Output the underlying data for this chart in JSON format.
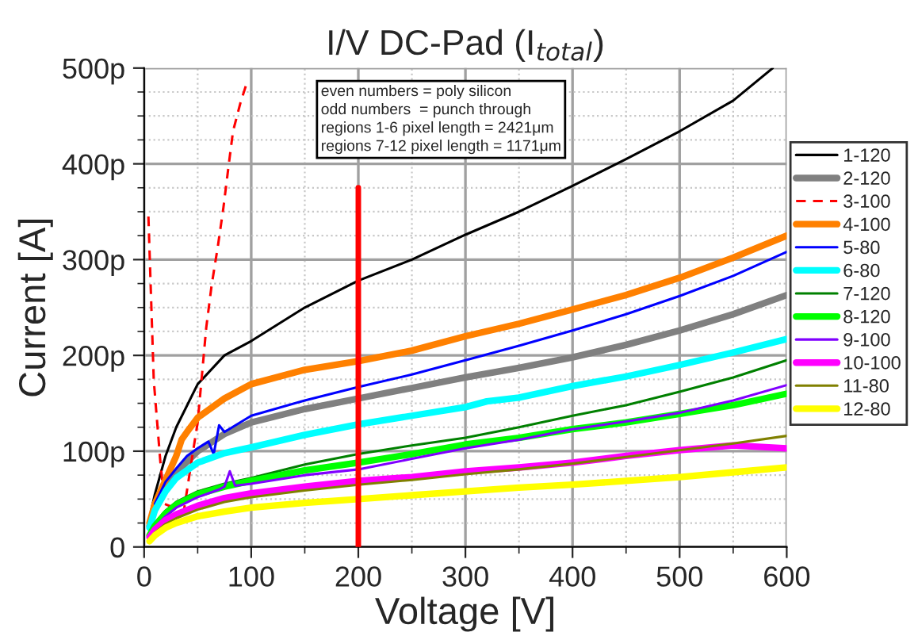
{
  "chart_data": {
    "type": "line",
    "title": "I/V DC-Pad (I$_{total}$)",
    "xlabel": "Voltage [V]",
    "ylabel": "Current [A]",
    "xlim": [
      0,
      600
    ],
    "xticks": [
      0,
      100,
      200,
      300,
      400,
      500,
      600
    ],
    "ylim": [
      0,
      500
    ],
    "yticks": [
      0,
      {
        "value": 100,
        "label": "100p"
      },
      {
        "value": 200,
        "label": "200p"
      },
      {
        "value": 300,
        "label": "300p"
      },
      {
        "value": 400,
        "label": "400p"
      },
      {
        "value": 500,
        "label": "500p"
      }
    ],
    "grid": true,
    "legend": "right",
    "annotations": [
      "even numbers = poly silicon\nodd numbers  = punch through\nregions 1-6 pixel length = 2421μm\nregions 7-12 pixel length = 1171μm"
    ],
    "series": [
      {
        "name": "1-120",
        "color": "#000000",
        "x": [
          5,
          10,
          20,
          30,
          50,
          75,
          100,
          150,
          200,
          250,
          300,
          350,
          400,
          450,
          500,
          550,
          587
        ],
        "values": [
          30,
          55,
          95,
          125,
          170,
          200,
          215,
          250,
          278,
          300,
          326,
          350,
          377,
          405,
          434,
          466,
          500
        ]
      },
      {
        "name": "2-120",
        "color": "#808080",
        "x": [
          5,
          10,
          20,
          30,
          50,
          75,
          100,
          150,
          200,
          250,
          300,
          350,
          400,
          450,
          500,
          550,
          600
        ],
        "values": [
          22,
          40,
          62,
          78,
          100,
          118,
          130,
          144,
          155,
          166,
          177,
          187,
          198,
          211,
          226,
          243,
          263
        ]
      },
      {
        "name": "3-100",
        "color": "#ff0000",
        "line_style": "dashed",
        "x": [
          4,
          9,
          15,
          19,
          37,
          45,
          50,
          58,
          63,
          69,
          74,
          79,
          83,
          90,
          96
        ],
        "values": [
          345,
          174,
          91,
          45,
          37,
          95,
          130,
          229,
          273,
          315,
          354,
          399,
          434,
          464,
          485
        ]
      },
      {
        "name": "4-100",
        "color": "#ff8000",
        "x": [
          5,
          10,
          20,
          30,
          35,
          40,
          50,
          75,
          100,
          150,
          200,
          250,
          300,
          350,
          400,
          450,
          500,
          550,
          600
        ],
        "values": [
          25,
          45,
          70,
          95,
          112,
          120,
          135,
          155,
          170,
          185,
          194,
          205,
          220,
          233,
          248,
          263,
          281,
          302,
          325
        ]
      },
      {
        "name": "5-80",
        "color": "#0000ff",
        "x": [
          10,
          20,
          30,
          40,
          50,
          60,
          65,
          70,
          75,
          100,
          150,
          200,
          250,
          300,
          350,
          400,
          450,
          500,
          550,
          600
        ],
        "values": [
          45,
          68,
          82,
          95,
          103,
          110,
          97,
          127,
          120,
          137,
          153,
          167,
          180,
          195,
          210,
          226,
          243,
          262,
          283,
          308
        ]
      },
      {
        "name": "6-80",
        "color": "#00ffff",
        "x": [
          5,
          10,
          20,
          30,
          50,
          75,
          100,
          150,
          200,
          250,
          300,
          320,
          350,
          400,
          450,
          500,
          550,
          600
        ],
        "values": [
          20,
          38,
          58,
          72,
          88,
          98,
          104,
          117,
          128,
          137,
          146,
          152,
          156,
          168,
          178,
          190,
          203,
          217
        ]
      },
      {
        "name": "7-120",
        "color": "#008000",
        "x": [
          5,
          10,
          20,
          30,
          50,
          75,
          100,
          150,
          200,
          250,
          300,
          350,
          400,
          450,
          500,
          550,
          600
        ],
        "values": [
          15,
          25,
          38,
          47,
          58,
          66,
          72,
          86,
          97,
          106,
          114,
          125,
          137,
          148,
          162,
          177,
          195
        ]
      },
      {
        "name": "8-120",
        "color": "#00ff00",
        "x": [
          5,
          10,
          20,
          30,
          50,
          75,
          100,
          150,
          200,
          250,
          300,
          350,
          400,
          450,
          500,
          550,
          600
        ],
        "values": [
          12,
          22,
          35,
          44,
          55,
          63,
          69,
          80,
          88,
          97,
          107,
          114,
          123,
          130,
          139,
          148,
          160
        ]
      },
      {
        "name": "9-100",
        "color": "#8000ff",
        "x": [
          5,
          10,
          20,
          30,
          50,
          70,
          75,
          80,
          85,
          100,
          150,
          200,
          250,
          300,
          350,
          400,
          450,
          500,
          550,
          600
        ],
        "values": [
          10,
          20,
          32,
          41,
          52,
          60,
          63,
          79,
          64,
          66,
          75,
          81,
          92,
          103,
          112,
          123,
          131,
          140,
          153,
          169
        ]
      },
      {
        "name": "10-100",
        "color": "#ff00ff",
        "x": [
          5,
          10,
          20,
          30,
          50,
          75,
          100,
          150,
          200,
          250,
          300,
          350,
          400,
          450,
          500,
          550,
          600
        ],
        "values": [
          10,
          18,
          28,
          34,
          43,
          51,
          56,
          63,
          69,
          73,
          79,
          83,
          88,
          95,
          101,
          106,
          103
        ]
      },
      {
        "name": "11-80",
        "color": "#808000",
        "x": [
          5,
          10,
          20,
          30,
          50,
          75,
          100,
          150,
          200,
          250,
          300,
          350,
          400,
          450,
          500,
          550,
          600
        ],
        "values": [
          8,
          15,
          24,
          30,
          39,
          47,
          52,
          59,
          65,
          70,
          76,
          81,
          87,
          94,
          101,
          108,
          116
        ]
      },
      {
        "name": "12-80",
        "color": "#ffff00",
        "x": [
          5,
          10,
          20,
          30,
          50,
          75,
          100,
          150,
          200,
          250,
          300,
          350,
          400,
          450,
          500,
          550,
          600
        ],
        "values": [
          6,
          12,
          20,
          25,
          32,
          37,
          41,
          46,
          50,
          54,
          58,
          62,
          65,
          69,
          73,
          78,
          83
        ]
      },
      {
        "color": "#ff0000",
        "x": [
          200,
          200
        ],
        "values": [
          0,
          375
        ]
      }
    ]
  }
}
